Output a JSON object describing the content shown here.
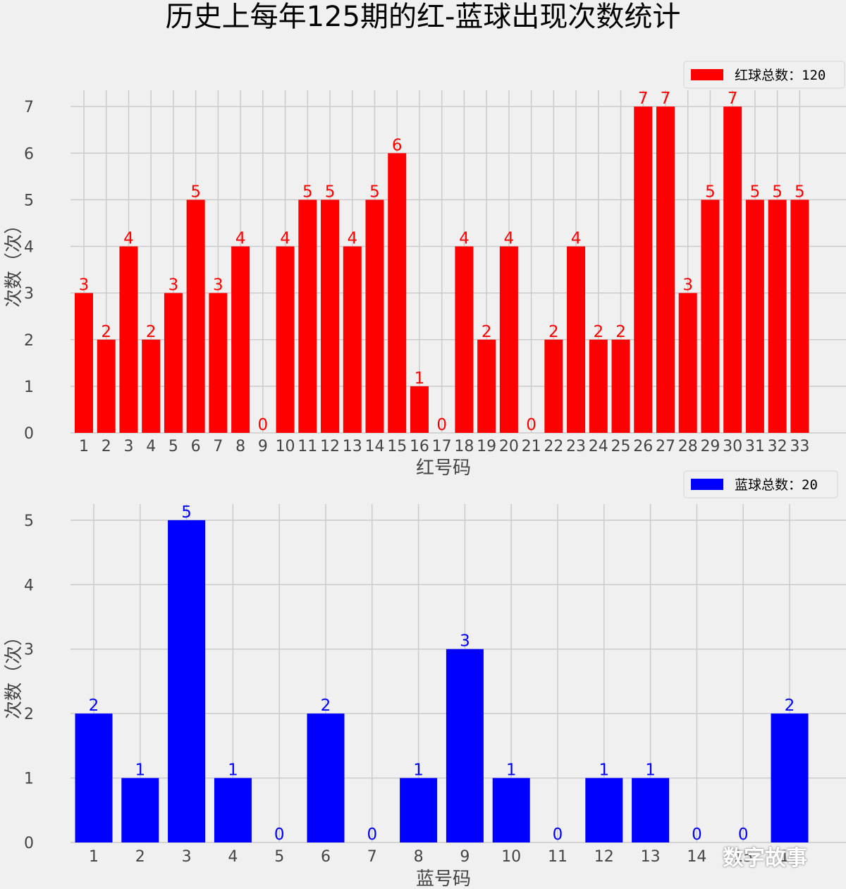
{
  "title": "历史上每年125期的红-蓝球出现次数统计",
  "watermark": "数字故事",
  "colors": {
    "red": "#ff0000",
    "blue": "#0000ff",
    "background": "#f0f0f0",
    "grid": "#cbcbcb"
  },
  "chart_data": [
    {
      "type": "bar",
      "categories": [
        "1",
        "2",
        "3",
        "4",
        "5",
        "6",
        "7",
        "8",
        "9",
        "10",
        "11",
        "12",
        "13",
        "14",
        "15",
        "16",
        "17",
        "18",
        "19",
        "20",
        "21",
        "22",
        "23",
        "24",
        "25",
        "26",
        "27",
        "28",
        "29",
        "30",
        "31",
        "32",
        "33"
      ],
      "values": [
        3,
        2,
        4,
        2,
        3,
        5,
        3,
        4,
        0,
        4,
        5,
        5,
        4,
        5,
        6,
        1,
        0,
        4,
        2,
        4,
        0,
        2,
        4,
        2,
        2,
        7,
        7,
        3,
        5,
        7,
        5,
        5,
        5
      ],
      "series": [
        {
          "name": "红球总数：120",
          "values": [
            3,
            2,
            4,
            2,
            3,
            5,
            3,
            4,
            0,
            4,
            5,
            5,
            4,
            5,
            6,
            1,
            0,
            4,
            2,
            4,
            0,
            2,
            4,
            2,
            2,
            7,
            7,
            3,
            5,
            7,
            5,
            5,
            5
          ]
        }
      ],
      "xlabel": "红号码",
      "ylabel": "次数（次）",
      "ylim": [
        0,
        7.35
      ],
      "yticks": [
        0,
        1,
        2,
        3,
        4,
        5,
        6,
        7
      ],
      "grid": true,
      "legend": "top-right",
      "color": "#ff0000"
    },
    {
      "type": "bar",
      "categories": [
        "1",
        "2",
        "3",
        "4",
        "5",
        "6",
        "7",
        "8",
        "9",
        "10",
        "11",
        "12",
        "13",
        "14",
        "15",
        "16"
      ],
      "values": [
        2,
        1,
        5,
        1,
        0,
        2,
        0,
        1,
        3,
        1,
        0,
        1,
        1,
        0,
        0,
        2
      ],
      "series": [
        {
          "name": "蓝球总数：20",
          "values": [
            2,
            1,
            5,
            1,
            0,
            2,
            0,
            1,
            3,
            1,
            0,
            1,
            1,
            0,
            0,
            2
          ]
        }
      ],
      "xlabel": "蓝号码",
      "ylabel": "次数（次）",
      "ylim": [
        0,
        5.25
      ],
      "yticks": [
        0,
        1,
        2,
        3,
        4,
        5
      ],
      "grid": true,
      "legend": "top-right",
      "color": "#0000ff"
    }
  ]
}
